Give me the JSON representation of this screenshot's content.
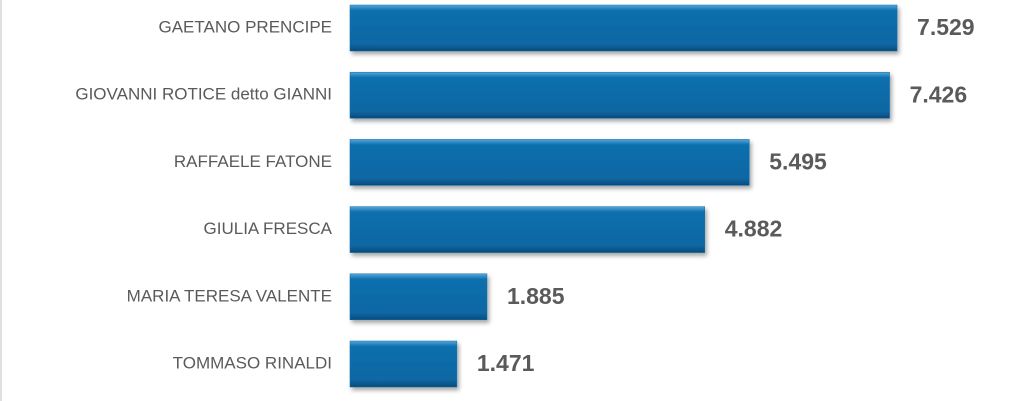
{
  "chart_data": {
    "type": "bar",
    "orientation": "horizontal",
    "categories": [
      "GAETANO PRENCIPE",
      "GIOVANNI ROTICE detto GIANNI",
      "RAFFAELE FATONE",
      "GIULIA FRESCA",
      "MARIA TERESA VALENTE",
      "TOMMASO RINALDI"
    ],
    "values": [
      7529,
      7426,
      5495,
      4882,
      1885,
      1471
    ],
    "value_labels": [
      "7.529",
      "7.426",
      "5.495",
      "4.882",
      "1.885",
      "1.471"
    ],
    "color": "#0b6fae"
  }
}
